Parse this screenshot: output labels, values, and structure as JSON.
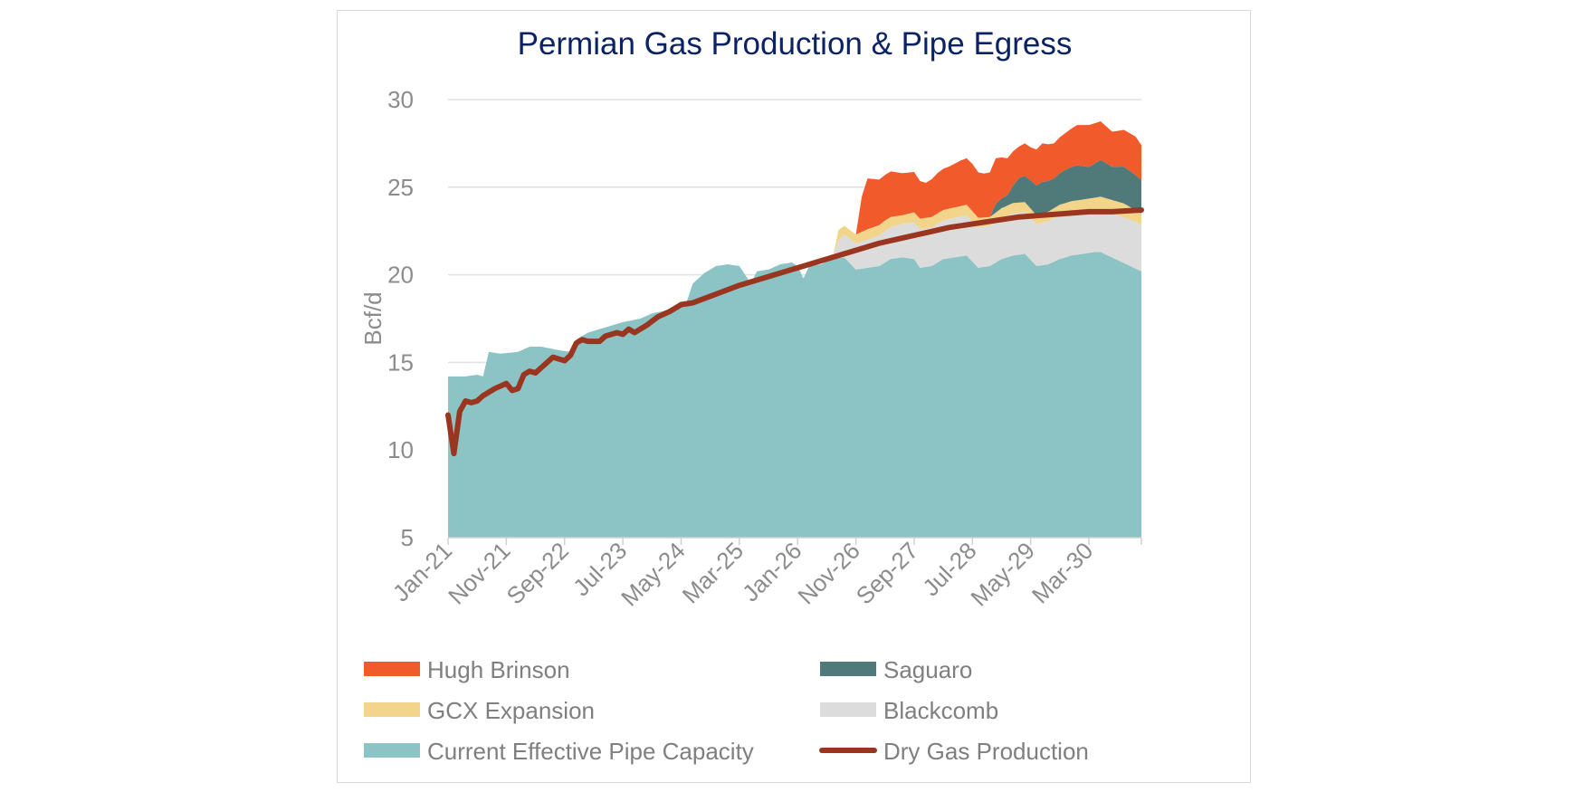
{
  "chart_data": {
    "type": "area",
    "title": "Permian Gas Production & Pipe Egress",
    "ylabel": "Bcf/d",
    "xlabel": "",
    "ylim": [
      5,
      30
    ],
    "yticks": [
      5,
      10,
      15,
      20,
      25,
      30
    ],
    "grid": true,
    "x_start": "Jan-21",
    "x_months": 120,
    "x_tick_labels": [
      "Jan-21",
      "Nov-21",
      "Sep-22",
      "Jul-23",
      "May-24",
      "Mar-25",
      "Jan-26",
      "Nov-26",
      "Sep-27",
      "Jul-28",
      "May-29",
      "Mar-30"
    ],
    "legend_position": "bottom",
    "stack_note": "Area series are stacked; segment values below are the thickness of each layer",
    "series": [
      {
        "name": "Current Effective Pipe Capacity",
        "kind": "stacked-area",
        "color": "#8cc4c6",
        "points": [
          [
            0,
            14.2
          ],
          [
            3,
            14.2
          ],
          [
            5,
            14.3
          ],
          [
            6,
            14.2
          ],
          [
            7,
            15.6
          ],
          [
            9,
            15.5
          ],
          [
            12,
            15.6
          ],
          [
            14,
            15.9
          ],
          [
            16,
            15.9
          ],
          [
            19,
            15.7
          ],
          [
            21,
            15.6
          ],
          [
            22,
            16.3
          ],
          [
            24,
            16.7
          ],
          [
            26,
            16.9
          ],
          [
            28,
            17.1
          ],
          [
            30,
            17.3
          ],
          [
            33,
            17.5
          ],
          [
            35,
            17.8
          ],
          [
            38,
            18.0
          ],
          [
            40,
            18.3
          ],
          [
            41,
            18.5
          ],
          [
            42,
            19.5
          ],
          [
            44,
            20.1
          ],
          [
            46,
            20.5
          ],
          [
            48,
            20.6
          ],
          [
            50,
            20.5
          ],
          [
            52,
            19.5
          ],
          [
            53,
            20.2
          ],
          [
            55,
            20.3
          ],
          [
            57,
            20.6
          ],
          [
            59,
            20.7
          ],
          [
            60,
            20.5
          ],
          [
            61,
            19.8
          ],
          [
            62,
            20.5
          ],
          [
            64,
            20.6
          ],
          [
            66,
            20.9
          ],
          [
            68,
            21.0
          ],
          [
            70,
            20.3
          ],
          [
            72,
            20.4
          ],
          [
            74,
            20.5
          ],
          [
            76,
            20.9
          ],
          [
            78,
            21.0
          ],
          [
            80,
            20.9
          ],
          [
            81,
            20.4
          ],
          [
            83,
            20.5
          ],
          [
            85,
            20.9
          ],
          [
            87,
            21.0
          ],
          [
            89,
            21.1
          ],
          [
            91,
            20.4
          ],
          [
            93,
            20.5
          ],
          [
            95,
            20.9
          ],
          [
            97,
            21.1
          ],
          [
            99,
            21.2
          ],
          [
            101,
            20.5
          ],
          [
            103,
            20.6
          ],
          [
            105,
            20.9
          ],
          [
            107,
            21.1
          ],
          [
            109,
            21.2
          ],
          [
            111,
            21.3
          ],
          [
            112,
            21.3
          ],
          [
            119,
            20.2
          ]
        ]
      },
      {
        "name": "Blackcomb",
        "kind": "stacked-area",
        "color": "#dcdcdc",
        "segment": [
          [
            66,
            0
          ],
          [
            67,
            1.0
          ],
          [
            68,
            1.3
          ],
          [
            70,
            1.5
          ],
          [
            72,
            1.6
          ],
          [
            75,
            1.8
          ],
          [
            78,
            1.9
          ],
          [
            81,
            2.2
          ],
          [
            85,
            2.2
          ],
          [
            89,
            2.3
          ],
          [
            93,
            2.3
          ],
          [
            97,
            2.4
          ],
          [
            101,
            2.4
          ],
          [
            105,
            2.5
          ],
          [
            109,
            2.5
          ],
          [
            111,
            2.4
          ],
          [
            116,
            2.6
          ],
          [
            119,
            2.7
          ]
        ]
      },
      {
        "name": "GCX Expansion",
        "kind": "stacked-area",
        "color": "#f2d58a",
        "segment": [
          [
            66,
            0
          ],
          [
            67,
            0.6
          ],
          [
            68,
            0.5
          ],
          [
            70,
            0.5
          ],
          [
            72,
            0.6
          ],
          [
            75,
            0.6
          ],
          [
            78,
            0.5
          ],
          [
            81,
            0.6
          ],
          [
            85,
            0.6
          ],
          [
            89,
            0.6
          ],
          [
            93,
            0.5
          ],
          [
            97,
            0.6
          ],
          [
            101,
            0.5
          ],
          [
            105,
            0.6
          ],
          [
            109,
            0.6
          ],
          [
            111,
            0.7
          ],
          [
            116,
            0.8
          ],
          [
            119,
            0.6
          ]
        ]
      },
      {
        "name": "Saguaro",
        "kind": "stacked-area",
        "color": "#50797a",
        "segment": [
          [
            93,
            0
          ],
          [
            94,
            0.5
          ],
          [
            96,
            0.6
          ],
          [
            98,
            1.4
          ],
          [
            100,
            1.6
          ],
          [
            102,
            1.8
          ],
          [
            104,
            1.7
          ],
          [
            106,
            1.9
          ],
          [
            108,
            2.0
          ],
          [
            110,
            1.8
          ],
          [
            112,
            2.1
          ],
          [
            114,
            1.9
          ],
          [
            116,
            2.1
          ],
          [
            118,
            2.0
          ],
          [
            119,
            1.9
          ]
        ]
      },
      {
        "name": "Hugh Brinson",
        "kind": "stacked-area",
        "color": "#f15a2b",
        "segment": [
          [
            70,
            0
          ],
          [
            71,
            2.0
          ],
          [
            72,
            2.9
          ],
          [
            74,
            2.6
          ],
          [
            76,
            2.6
          ],
          [
            78,
            2.4
          ],
          [
            80,
            2.3
          ],
          [
            82,
            2.0
          ],
          [
            84,
            2.3
          ],
          [
            86,
            2.4
          ],
          [
            88,
            2.6
          ],
          [
            90,
            2.7
          ],
          [
            92,
            2.5
          ],
          [
            94,
            2.6
          ],
          [
            96,
            2.1
          ],
          [
            98,
            1.8
          ],
          [
            100,
            1.9
          ],
          [
            102,
            2.2
          ],
          [
            104,
            2.0
          ],
          [
            106,
            2.1
          ],
          [
            108,
            2.3
          ],
          [
            110,
            2.4
          ],
          [
            112,
            2.2
          ],
          [
            114,
            2.0
          ],
          [
            116,
            2.1
          ],
          [
            118,
            2.2
          ],
          [
            119,
            2.0
          ]
        ]
      },
      {
        "name": "Dry Gas Production",
        "kind": "line",
        "color": "#9a3520",
        "points": [
          [
            0,
            12.0
          ],
          [
            1,
            9.8
          ],
          [
            2,
            12.2
          ],
          [
            3,
            12.8
          ],
          [
            4,
            12.7
          ],
          [
            5,
            12.8
          ],
          [
            6,
            13.1
          ],
          [
            8,
            13.5
          ],
          [
            10,
            13.8
          ],
          [
            11,
            13.4
          ],
          [
            12,
            13.5
          ],
          [
            13,
            14.3
          ],
          [
            14,
            14.5
          ],
          [
            15,
            14.4
          ],
          [
            16,
            14.7
          ],
          [
            18,
            15.3
          ],
          [
            20,
            15.1
          ],
          [
            21,
            15.4
          ],
          [
            22,
            16.1
          ],
          [
            23,
            16.3
          ],
          [
            24,
            16.2
          ],
          [
            26,
            16.2
          ],
          [
            27,
            16.5
          ],
          [
            29,
            16.7
          ],
          [
            30,
            16.6
          ],
          [
            31,
            16.9
          ],
          [
            32,
            16.7
          ],
          [
            34,
            17.1
          ],
          [
            36,
            17.6
          ],
          [
            38,
            17.9
          ],
          [
            40,
            18.3
          ],
          [
            42,
            18.4
          ],
          [
            46,
            18.9
          ],
          [
            50,
            19.4
          ],
          [
            54,
            19.8
          ],
          [
            58,
            20.2
          ],
          [
            62,
            20.6
          ],
          [
            66,
            21.0
          ],
          [
            70,
            21.4
          ],
          [
            74,
            21.8
          ],
          [
            78,
            22.1
          ],
          [
            82,
            22.4
          ],
          [
            86,
            22.7
          ],
          [
            90,
            22.9
          ],
          [
            94,
            23.1
          ],
          [
            98,
            23.3
          ],
          [
            102,
            23.4
          ],
          [
            106,
            23.5
          ],
          [
            110,
            23.6
          ],
          [
            114,
            23.6
          ],
          [
            119,
            23.7
          ]
        ]
      }
    ],
    "legend": [
      {
        "label": "Hugh Brinson",
        "color": "#f15a2b",
        "style": "patch"
      },
      {
        "label": "Saguaro",
        "color": "#50797a",
        "style": "patch"
      },
      {
        "label": "GCX Expansion",
        "color": "#f2d58a",
        "style": "patch"
      },
      {
        "label": "Blackcomb",
        "color": "#dcdcdc",
        "style": "patch"
      },
      {
        "label": "Current Effective Pipe Capacity",
        "color": "#8cc4c6",
        "style": "patch"
      },
      {
        "label": "Dry Gas Production",
        "color": "#9a3520",
        "style": "line"
      }
    ]
  }
}
